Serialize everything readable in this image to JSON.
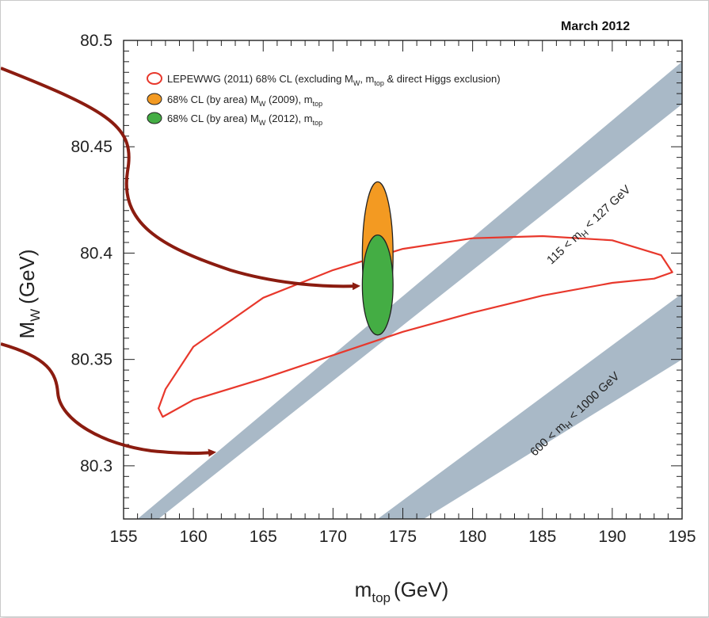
{
  "chart_data": {
    "type": "scatter",
    "date_label": "March 2012",
    "xlabel": "m",
    "xlabel_sub": "top",
    "xlabel_unit": "(GeV)",
    "ylabel": "M",
    "ylabel_sub": "W",
    "ylabel_unit": "(GeV)",
    "xlim": [
      155,
      195
    ],
    "ylim": [
      80.275,
      80.5
    ],
    "x_ticks": [
      "155",
      "160",
      "165",
      "170",
      "175",
      "180",
      "185",
      "190",
      "195"
    ],
    "y_ticks": [
      "80.3",
      "80.35",
      "80.4",
      "80.45",
      "80.5"
    ],
    "legend_placement": "top-left",
    "legend": [
      {
        "marker": "open-red-ellipse",
        "text": "LEPEWWG (2011) 68% CL (excluding M",
        "sub": "W",
        "text2": ", m",
        "sub2": "top",
        "text3": " & direct Higgs exclusion)"
      },
      {
        "marker": "orange-ellipse",
        "text": "68% CL (by area) M",
        "sub": "W",
        "text2": " (2009), m",
        "sub2": "top"
      },
      {
        "marker": "green-ellipse",
        "text": "68% CL (by area) M",
        "sub": "W",
        "text2": " (2012), m",
        "sub2": "top"
      }
    ],
    "ellipses": [
      {
        "name": "LEPEWWG (2011)",
        "style": "outline",
        "color": "#e8382c",
        "points": [
          [
            157.8,
            80.323
          ],
          [
            160,
            80.331
          ],
          [
            165,
            80.341
          ],
          [
            170,
            80.352
          ],
          [
            175,
            80.363
          ],
          [
            180,
            80.372
          ],
          [
            185,
            80.38
          ],
          [
            190,
            80.386
          ],
          [
            193,
            80.388
          ],
          [
            194.3,
            80.391
          ],
          [
            193.5,
            80.399
          ],
          [
            190,
            80.406
          ],
          [
            185,
            80.408
          ],
          [
            180,
            80.407
          ],
          [
            175,
            80.402
          ],
          [
            170,
            80.392
          ],
          [
            165,
            80.379
          ],
          [
            160,
            80.356
          ],
          [
            158,
            80.336
          ],
          [
            157.5,
            80.327
          ]
        ]
      },
      {
        "name": "M_W (2009)",
        "style": "filled",
        "color": "#f39a22",
        "cx": 173.2,
        "cy": 80.399,
        "rx": 1.1,
        "ry": 0.0345
      },
      {
        "name": "M_W (2012)",
        "style": "filled",
        "color": "#44ad44",
        "cx": 173.2,
        "cy": 80.385,
        "rx": 1.1,
        "ry": 0.0235
      }
    ],
    "bands": [
      {
        "label_pre": "115 < m",
        "label_sub": "H",
        "label_post": " < 127 GeV",
        "color": "#a9b9c7",
        "lower": [
          [
            157.5,
            80.275
          ],
          [
            195,
            80.47
          ]
        ],
        "upper": [
          [
            156,
            80.275
          ],
          [
            195,
            80.49
          ]
        ]
      },
      {
        "label_pre": "600 < m",
        "label_sub": "H",
        "label_post": " < 1000 GeV",
        "color": "#a9b9c7",
        "lower": [
          [
            176.5,
            80.275
          ],
          [
            195,
            80.35
          ]
        ],
        "upper": [
          [
            173.2,
            80.275
          ],
          [
            195,
            80.381
          ]
        ]
      }
    ]
  }
}
